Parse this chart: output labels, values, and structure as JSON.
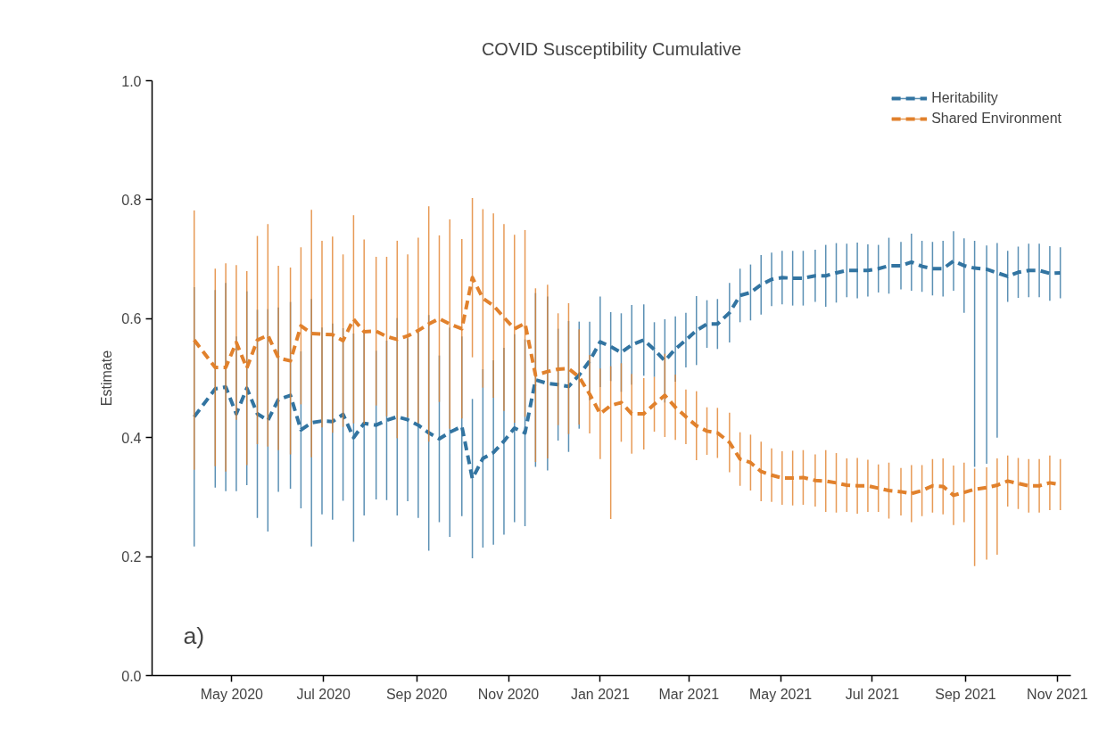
{
  "chart_data": {
    "type": "line",
    "title": "COVID Susceptibility Cumulative",
    "ylabel": "Estimate",
    "annotations": [
      "a)"
    ],
    "x": [
      "2020-04-06",
      "2020-04-20",
      "2020-04-27",
      "2020-05-04",
      "2020-05-11",
      "2020-05-18",
      "2020-05-25",
      "2020-06-01",
      "2020-06-09",
      "2020-06-16",
      "2020-06-23",
      "2020-06-30",
      "2020-07-07",
      "2020-07-14",
      "2020-07-21",
      "2020-07-28",
      "2020-08-05",
      "2020-08-12",
      "2020-08-19",
      "2020-08-26",
      "2020-09-02",
      "2020-09-09",
      "2020-09-16",
      "2020-09-23",
      "2020-10-01",
      "2020-10-08",
      "2020-10-15",
      "2020-10-22",
      "2020-10-29",
      "2020-11-05",
      "2020-11-12",
      "2020-11-19",
      "2020-11-27",
      "2020-12-04",
      "2020-12-11",
      "2020-12-18",
      "2020-12-25",
      "2021-01-01",
      "2021-01-08",
      "2021-01-15",
      "2021-01-22",
      "2021-01-30",
      "2021-02-06",
      "2021-02-13",
      "2021-02-20",
      "2021-02-27",
      "2021-03-06",
      "2021-03-13",
      "2021-03-20",
      "2021-03-28",
      "2021-04-04",
      "2021-04-11",
      "2021-04-18",
      "2021-04-25",
      "2021-05-02",
      "2021-05-09",
      "2021-05-16",
      "2021-05-24",
      "2021-05-31",
      "2021-06-07",
      "2021-06-14",
      "2021-06-21",
      "2021-06-28",
      "2021-07-05",
      "2021-07-12",
      "2021-07-20",
      "2021-07-27",
      "2021-08-03",
      "2021-08-10",
      "2021-08-17",
      "2021-08-24",
      "2021-08-31",
      "2021-09-07",
      "2021-09-15",
      "2021-09-22",
      "2021-09-29",
      "2021-10-06",
      "2021-10-13",
      "2021-10-20",
      "2021-10-27",
      "2021-11-03"
    ],
    "series": [
      {
        "name": "Heritability",
        "color": "#3274a1",
        "values": [
          0.435,
          0.482,
          0.485,
          0.44,
          0.483,
          0.44,
          0.429,
          0.464,
          0.471,
          0.413,
          0.425,
          0.428,
          0.427,
          0.439,
          0.4,
          0.424,
          0.421,
          0.429,
          0.435,
          0.43,
          0.421,
          0.408,
          0.398,
          0.409,
          0.419,
          0.331,
          0.365,
          0.375,
          0.394,
          0.416,
          0.408,
          0.497,
          0.491,
          0.489,
          0.486,
          0.505,
          0.529,
          0.561,
          0.553,
          0.543,
          0.556,
          0.564,
          0.548,
          0.529,
          0.549,
          0.564,
          0.58,
          0.591,
          0.591,
          0.61,
          0.639,
          0.644,
          0.657,
          0.666,
          0.669,
          0.668,
          0.668,
          0.672,
          0.672,
          0.677,
          0.681,
          0.681,
          0.681,
          0.684,
          0.689,
          0.689,
          0.695,
          0.688,
          0.684,
          0.684,
          0.697,
          0.689,
          0.685,
          0.683,
          0.677,
          0.671,
          0.678,
          0.681,
          0.681,
          0.676,
          0.677
        ],
        "errors": [
          0.218,
          0.166,
          0.175,
          0.13,
          0.163,
          0.175,
          0.187,
          0.155,
          0.157,
          0.132,
          0.208,
          0.157,
          0.165,
          0.145,
          0.175,
          0.155,
          0.125,
          0.134,
          0.166,
          0.137,
          0.156,
          0.198,
          0.14,
          0.176,
          0.151,
          0.134,
          0.15,
          0.155,
          0.157,
          0.158,
          0.157,
          0.146,
          0.146,
          0.094,
          0.11,
          0.09,
          0.066,
          0.076,
          0.058,
          0.066,
          0.067,
          0.06,
          0.046,
          0.07,
          0.055,
          0.046,
          0.058,
          0.04,
          0.042,
          0.05,
          0.045,
          0.047,
          0.05,
          0.045,
          0.045,
          0.046,
          0.046,
          0.044,
          0.052,
          0.05,
          0.045,
          0.047,
          0.044,
          0.04,
          0.047,
          0.04,
          0.048,
          0.043,
          0.045,
          0.047,
          0.05,
          [
            0.61,
            0.735
          ],
          [
            0.351,
            0.731
          ],
          [
            0.356,
            0.723
          ],
          [
            0.4,
            0.727
          ],
          0.043,
          0.043,
          0.045,
          0.045,
          0.046,
          0.043
        ]
      },
      {
        "name": "Shared Environment",
        "color": "#e1812c",
        "values": [
          0.564,
          0.518,
          0.518,
          0.56,
          0.517,
          0.564,
          0.572,
          0.534,
          0.529,
          0.588,
          0.575,
          0.574,
          0.573,
          0.563,
          0.599,
          0.578,
          0.579,
          0.57,
          0.565,
          0.571,
          0.58,
          0.591,
          0.6,
          0.591,
          0.583,
          0.669,
          0.634,
          0.622,
          0.602,
          0.583,
          0.592,
          0.505,
          0.511,
          0.515,
          0.516,
          0.502,
          0.473,
          0.44,
          0.454,
          0.459,
          0.44,
          0.44,
          0.456,
          0.471,
          0.451,
          0.435,
          0.42,
          0.411,
          0.408,
          0.392,
          0.364,
          0.358,
          0.343,
          0.337,
          0.332,
          0.332,
          0.333,
          0.328,
          0.327,
          0.324,
          0.32,
          0.319,
          0.319,
          0.315,
          0.311,
          0.309,
          0.306,
          0.311,
          0.319,
          0.318,
          0.303,
          0.308,
          0.313,
          0.316,
          0.32,
          0.327,
          0.323,
          0.319,
          0.319,
          0.324,
          0.321
        ],
        "errors": [
          0.218,
          0.166,
          0.175,
          0.13,
          0.163,
          0.175,
          0.187,
          0.155,
          0.157,
          0.132,
          0.208,
          0.157,
          0.165,
          0.145,
          0.175,
          0.155,
          0.125,
          0.134,
          0.166,
          0.137,
          0.156,
          0.198,
          0.14,
          0.176,
          0.151,
          0.134,
          0.15,
          0.155,
          0.157,
          0.158,
          0.157,
          0.146,
          0.146,
          0.094,
          0.11,
          0.08,
          0.066,
          0.076,
          [
            0.263,
            0.52
          ],
          0.066,
          0.067,
          0.06,
          0.046,
          0.07,
          0.055,
          0.046,
          0.058,
          0.04,
          0.042,
          0.05,
          0.045,
          0.047,
          0.05,
          0.045,
          0.045,
          0.046,
          0.046,
          0.044,
          0.052,
          0.05,
          0.045,
          0.047,
          0.044,
          0.04,
          0.047,
          0.04,
          0.048,
          0.043,
          0.045,
          0.047,
          0.05,
          0.05,
          [
            0.184,
            0.348
          ],
          [
            0.195,
            0.35
          ],
          [
            0.203,
            0.365
          ],
          0.043,
          0.043,
          0.045,
          0.045,
          0.046,
          0.043
        ]
      }
    ],
    "xlim": [
      "2020-03-09",
      "2021-11-10"
    ],
    "xticks": [
      {
        "value": "2020-05-01",
        "label": "May 2020"
      },
      {
        "value": "2020-07-01",
        "label": "Jul 2020"
      },
      {
        "value": "2020-09-01",
        "label": "Sep 2020"
      },
      {
        "value": "2020-11-01",
        "label": "Nov 2020"
      },
      {
        "value": "2021-01-01",
        "label": "Jan 2021"
      },
      {
        "value": "2021-03-01",
        "label": "Mar 2021"
      },
      {
        "value": "2021-05-01",
        "label": "May 2021"
      },
      {
        "value": "2021-07-01",
        "label": "Jul 2021"
      },
      {
        "value": "2021-09-01",
        "label": "Sep 2021"
      },
      {
        "value": "2021-11-01",
        "label": "Nov 2021"
      }
    ],
    "ylim": [
      0,
      1
    ],
    "yticks": [
      {
        "value": 0,
        "label": "0.0"
      },
      {
        "value": 0.2,
        "label": "0.2"
      },
      {
        "value": 0.4,
        "label": "0.4"
      },
      {
        "value": 0.6,
        "label": "0.6"
      },
      {
        "value": 0.8,
        "label": "0.8"
      },
      {
        "value": 1,
        "label": "1.0"
      }
    ],
    "grid": false,
    "legend": "top right",
    "line_style": "dashed",
    "marker": "none"
  }
}
